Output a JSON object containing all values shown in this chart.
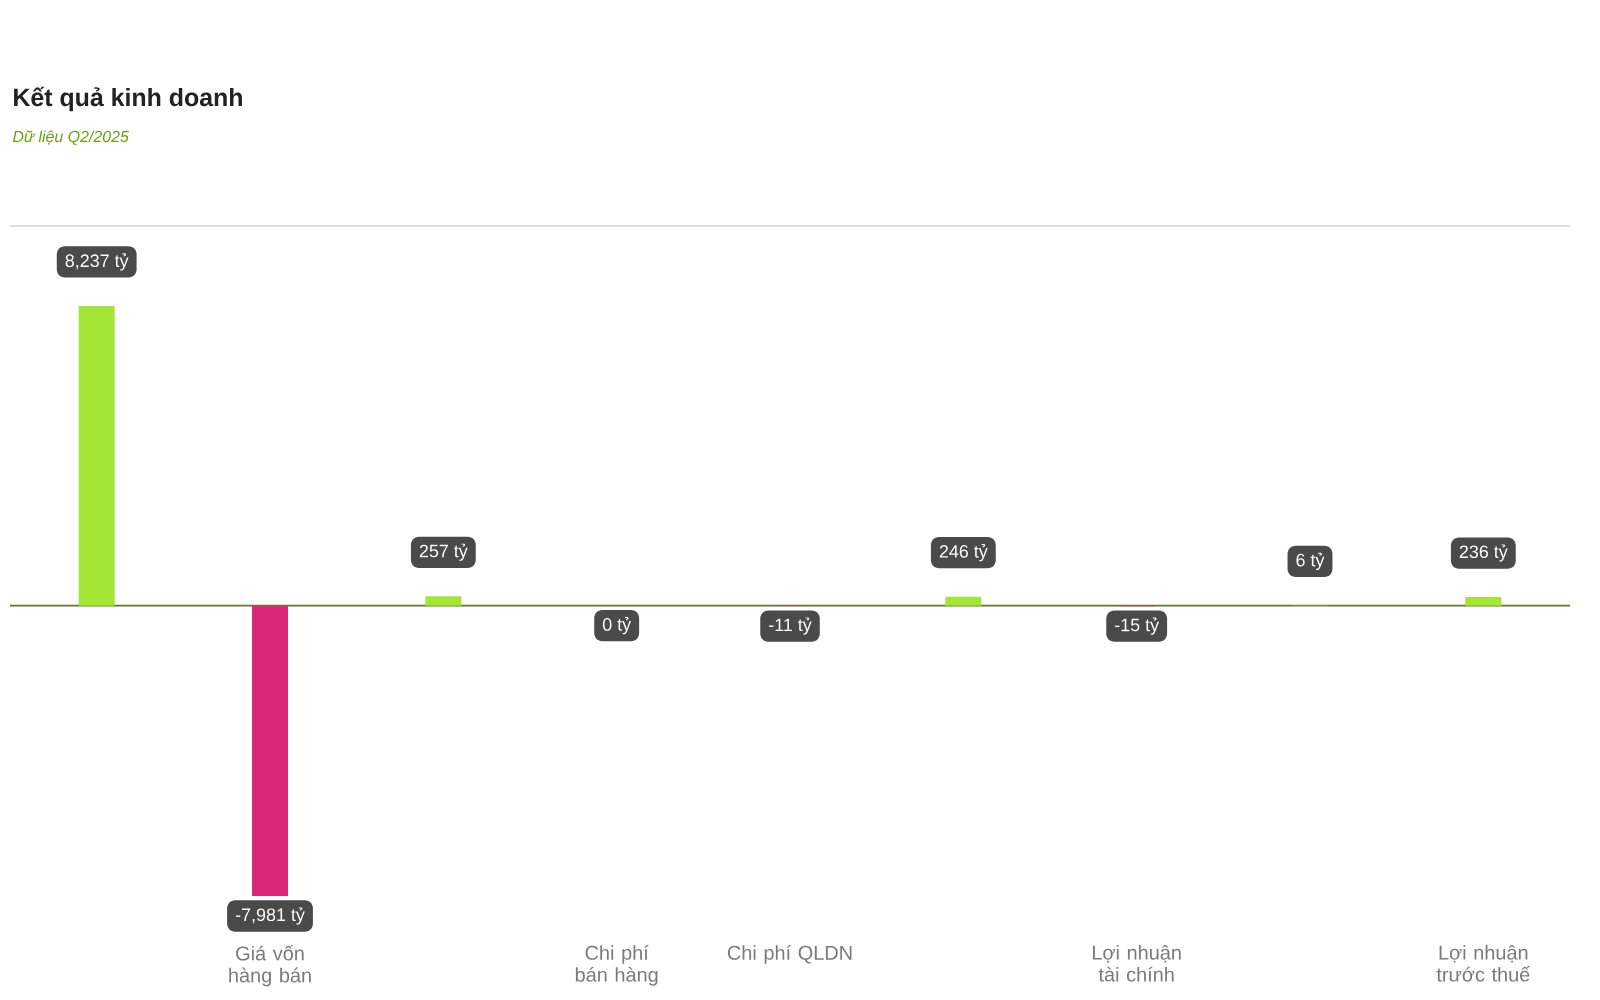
{
  "chart_data": {
    "type": "bar",
    "title": "Kết quả kinh doanh",
    "subtitle": "Dữ liệu Q2/2025",
    "categories": [
      null,
      "Giá vốn hàng bán",
      null,
      "Chi phí bán hàng",
      "Chi phí QLDN",
      null,
      "Lợi nhuận tài chính",
      null,
      "Lợi nhuận trước thuế"
    ],
    "values": [
      8237,
      -7981,
      257,
      0,
      -11,
      246,
      -15,
      6,
      236
    ],
    "colors": [
      "#a3e635",
      "#db2777",
      "#a3e635",
      "#a3e635",
      "#db2777",
      "#a3e635",
      "#db2777",
      "#a3e635",
      "#a3e635"
    ],
    "value_labels": [
      "8,237 tỷ",
      "-7,981 tỷ",
      "257 tỷ",
      "0 tỷ",
      "-11 tỷ",
      "246 tỷ",
      "-15 tỷ",
      "6 tỷ",
      "236 tỷ"
    ],
    "ref_lines": [
      {
        "axis": "y",
        "value": 0,
        "color": "#66772b"
      }
    ]
  }
}
